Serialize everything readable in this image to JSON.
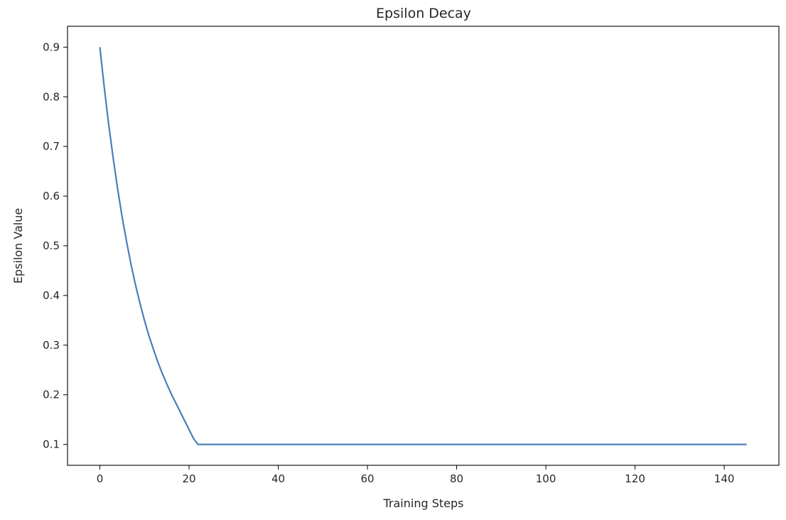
{
  "chart_data": {
    "type": "line",
    "title": "Epsilon Decay",
    "xlabel": "Training Steps",
    "ylabel": "Epsilon Value",
    "xlim": [
      -7.25,
      152.25
    ],
    "ylim": [
      0.058,
      0.942
    ],
    "xticks": [
      0,
      20,
      40,
      60,
      80,
      100,
      120,
      140
    ],
    "yticks": [
      0.1,
      0.2,
      0.3,
      0.4,
      0.5,
      0.6,
      0.7,
      0.8,
      0.9
    ],
    "grid": false,
    "legend": "none",
    "series": [
      {
        "color": "#4a7fb8",
        "x": [
          0,
          1,
          2,
          3,
          4,
          5,
          6,
          7,
          8,
          9,
          10,
          11,
          12,
          13,
          14,
          15,
          16,
          17,
          18,
          19,
          20,
          21,
          22,
          145
        ],
        "y": [
          0.9,
          0.818,
          0.743,
          0.676,
          0.614,
          0.558,
          0.508,
          0.462,
          0.421,
          0.384,
          0.35,
          0.319,
          0.292,
          0.266,
          0.243,
          0.222,
          0.202,
          0.184,
          0.166,
          0.148,
          0.13,
          0.112,
          0.1,
          0.1
        ]
      }
    ]
  }
}
